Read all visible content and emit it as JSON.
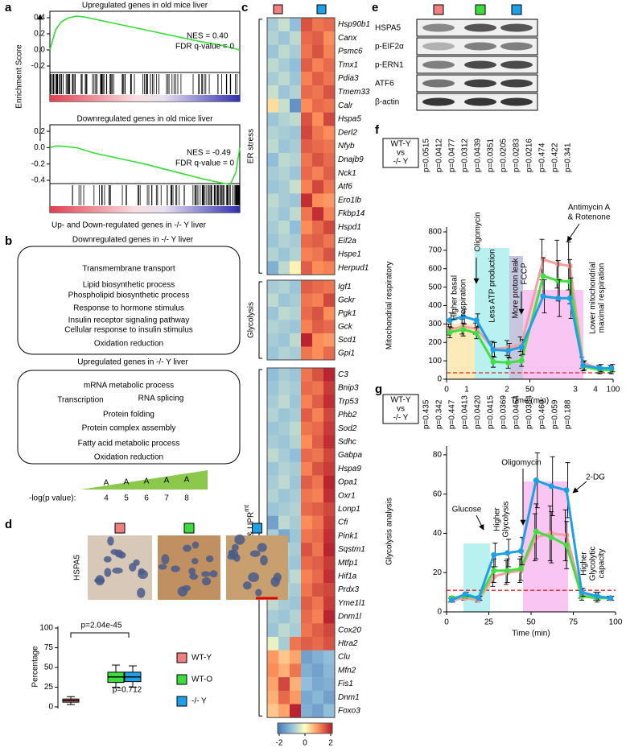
{
  "panel_labels": [
    "a",
    "b",
    "c",
    "d",
    "e",
    "f",
    "g"
  ],
  "a": {
    "y_label": "Enrichment Score",
    "x_label": "Up- and Down-regulated genes in -/- Y liver",
    "plots": [
      {
        "type": "line",
        "title": "Upregulated genes in old mice liver",
        "nes": "NES = 0.40",
        "fdr": "FDR q-value = 0",
        "color": "#33dd33",
        "x": [
          0,
          3,
          6,
          10,
          14,
          18,
          24,
          30,
          40,
          50,
          60,
          70,
          80,
          90,
          95,
          100
        ],
        "values": [
          0,
          0.25,
          0.35,
          0.4,
          0.42,
          0.41,
          0.38,
          0.35,
          0.3,
          0.25,
          0.2,
          0.15,
          0.1,
          0.06,
          0.03,
          0
        ],
        "xlim": [
          0,
          100
        ],
        "ylim": [
          -0.28,
          0.48
        ],
        "yticks": [
          0.4,
          0.2,
          {
            "value": 0,
            "label": "0.0"
          },
          -0.2
        ]
      },
      {
        "type": "line",
        "title": "Downregulated genes in old mice liver",
        "nes": "NES = -0.49",
        "fdr": "FDR q-value = 0",
        "color": "#33dd33",
        "x": [
          0,
          3,
          6,
          10,
          14,
          18,
          24,
          30,
          40,
          50,
          60,
          70,
          80,
          90,
          95,
          98,
          100
        ],
        "values": [
          0,
          0.02,
          0.02,
          0.01,
          0,
          -0.03,
          -0.07,
          -0.1,
          -0.15,
          -0.2,
          -0.26,
          -0.32,
          -0.38,
          -0.43,
          -0.45,
          -0.3,
          0
        ],
        "xlim": [
          0,
          100
        ],
        "ylim": [
          -0.44,
          0.28
        ],
        "yticks": [
          0.2,
          {
            "value": 0,
            "label": "0.0"
          },
          -0.2,
          -0.4
        ]
      }
    ]
  },
  "b": {
    "clouds": [
      {
        "title": "Downregulated genes in -/- Y liver",
        "terms": [
          {
            "text": "Transmembrane transport",
            "color": "#7030a0"
          },
          {
            "text": "Lipid biosynthetic process",
            "color": "#e01010"
          },
          {
            "text": "Phospholipid biosynthetic process",
            "color": "#e01010"
          },
          {
            "text": "Response to hormone stimulus",
            "color": "#1fa5d8"
          },
          {
            "text": "Insulin receptor signaling pathway",
            "color": "#1fa5d8"
          },
          {
            "text": "Cellular response to insulin stimulus",
            "color": "#1fa5d8"
          },
          {
            "text": "Oxidation reduction",
            "color": "#20a040"
          }
        ]
      },
      {
        "title": "Upregulated genes in -/- Y liver",
        "terms": [
          {
            "text": "mRNA metabolic process",
            "color": "#000000"
          },
          {
            "text": "Transcription",
            "color": "#000000"
          },
          {
            "text": "RNA splicing",
            "color": "#000000"
          },
          {
            "text": "Protein folding",
            "color": "#c8960c"
          },
          {
            "text": "Protein complex assembly",
            "color": "#c8960c"
          },
          {
            "text": "Fatty acid metabolic process",
            "color": "#e01010"
          },
          {
            "text": "Oxidation reduction",
            "color": "#20a040"
          }
        ]
      }
    ],
    "scale_label": "-log(p value):",
    "scale_letter": "A",
    "scale_values": [
      4,
      5,
      6,
      7,
      8
    ],
    "scale_color": "#8cc84b"
  },
  "c": {
    "type": "heatmap",
    "column_colors": [
      "#f08080",
      "#1ea0e6"
    ],
    "clim": [
      -2,
      2
    ],
    "colorbar_ticks": [
      -2,
      0,
      2
    ],
    "groups": [
      {
        "name": "ER stress",
        "genes": [
          "Hsp90b1",
          "Canx",
          "Psmc6",
          "Tmx1",
          "Pdia3",
          "Tmem33",
          "Calr",
          "Hspa5",
          "Derl2",
          "Nfyb",
          "Dnajb9",
          "Nck1",
          "Atf6",
          "Ero1lb",
          "Fkbp14",
          "Hspd1",
          "Eif2a",
          "Hspe1",
          "Herpud1"
        ],
        "values": [
          [
            -0.8,
            -0.5,
            -1.0,
            1.5,
            1.2,
            1.3
          ],
          [
            -0.7,
            -0.9,
            -0.6,
            1.3,
            1.4,
            1.0
          ],
          [
            -0.9,
            -0.6,
            -0.8,
            1.2,
            1.5,
            1.1
          ],
          [
            -0.6,
            -0.8,
            -1.0,
            1.4,
            1.1,
            1.3
          ],
          [
            -0.8,
            -0.6,
            -0.9,
            1.1,
            1.4,
            1.2
          ],
          [
            -0.5,
            -0.9,
            -0.7,
            1.3,
            1.2,
            1.5
          ],
          [
            0.3,
            -0.5,
            -1.6,
            1.0,
            1.3,
            1.2
          ],
          [
            -0.9,
            -0.7,
            -0.6,
            1.5,
            1.0,
            1.6
          ],
          [
            -0.7,
            -0.8,
            -0.9,
            1.6,
            1.2,
            1.0
          ],
          [
            -0.6,
            -0.9,
            -0.8,
            1.4,
            1.3,
            1.2
          ],
          [
            -1.0,
            -0.6,
            -0.7,
            1.2,
            1.5,
            1.3
          ],
          [
            -0.8,
            -0.7,
            -0.9,
            1.3,
            1.1,
            1.4
          ],
          [
            -0.9,
            -0.8,
            -0.5,
            1.1,
            1.6,
            1.2
          ],
          [
            -0.6,
            -0.8,
            -0.9,
            1.8,
            1.0,
            0.9
          ],
          [
            -0.7,
            -0.9,
            -0.6,
            1.2,
            1.8,
            1.1
          ],
          [
            -0.8,
            -0.6,
            -1.0,
            1.0,
            1.3,
            1.6
          ],
          [
            -0.9,
            -0.7,
            -0.8,
            1.3,
            1.4,
            1.2
          ],
          [
            -0.7,
            -0.9,
            -0.7,
            1.1,
            1.2,
            1.5
          ],
          [
            -1.2,
            -0.6,
            0.1,
            1.4,
            1.0,
            1.1
          ]
        ]
      },
      {
        "name": "Glycolysis",
        "genes": [
          "Igf1",
          "Gckr",
          "Pgk1",
          "Gck",
          "Scd1",
          "Gpi1"
        ],
        "values": [
          [
            -0.8,
            -0.7,
            -0.9,
            1.4,
            1.3,
            1.2
          ],
          [
            -0.6,
            -0.9,
            -0.8,
            1.2,
            1.1,
            1.6
          ],
          [
            -0.9,
            -0.6,
            -0.7,
            1.3,
            1.5,
            1.0
          ],
          [
            -0.7,
            -0.8,
            -0.9,
            1.1,
            1.4,
            1.3
          ],
          [
            -0.8,
            -0.9,
            -0.6,
            1.9,
            1.0,
            0.9
          ],
          [
            -0.9,
            -0.7,
            -0.8,
            1.2,
            1.0,
            1.3
          ]
        ]
      },
      {
        "name": "Mito activity & UPR",
        "name_sup": "mt",
        "genes": [
          "C3",
          "Bnip3",
          "Trp53",
          "Phb2",
          "Sod2",
          "Sdhc",
          "Gabpa",
          "Hspa9",
          "Opa1",
          "Oxr1",
          "Lonp1",
          "Cfi",
          "Pink1",
          "Sqstm1",
          "Mtfp1",
          "Hif1a",
          "Prdx3",
          "Yme1l1",
          "Dnm1l",
          "Cox20",
          "Htra2",
          "Clu",
          "Mfn2",
          "Fis1",
          "Dnm1",
          "Foxo3"
        ],
        "values": [
          [
            -1.0,
            -0.8,
            -0.9,
            1.2,
            1.5,
            1.9
          ],
          [
            -0.9,
            -0.7,
            -0.8,
            1.3,
            1.2,
            1.7
          ],
          [
            -0.8,
            -0.6,
            -0.9,
            1.1,
            1.4,
            1.8
          ],
          [
            -0.7,
            -0.9,
            -0.8,
            1.4,
            1.1,
            1.6
          ],
          [
            -0.9,
            -0.8,
            -0.6,
            1.2,
            1.3,
            1.7
          ],
          [
            -0.8,
            -0.9,
            -0.7,
            1.0,
            1.4,
            1.8
          ],
          [
            -0.6,
            -0.8,
            -1.0,
            1.3,
            1.2,
            1.6
          ],
          [
            -0.9,
            -0.7,
            -0.8,
            1.1,
            1.5,
            1.7
          ],
          [
            -0.8,
            -0.6,
            -0.9,
            1.4,
            1.2,
            1.9
          ],
          [
            -0.7,
            -0.9,
            -0.8,
            1.2,
            1.1,
            1.8
          ],
          [
            -0.9,
            -0.8,
            -0.7,
            1.3,
            1.4,
            1.6
          ],
          [
            -1.4,
            -0.6,
            -0.8,
            1.0,
            1.2,
            1.7
          ],
          [
            -0.8,
            -1.3,
            -0.9,
            1.2,
            1.3,
            1.8
          ],
          [
            -0.9,
            -0.7,
            -0.8,
            1.5,
            1.2,
            1.9
          ],
          [
            -0.7,
            -0.8,
            -0.9,
            1.3,
            1.4,
            1.7
          ],
          [
            -0.8,
            -0.9,
            -0.6,
            1.1,
            1.3,
            1.8
          ],
          [
            -0.9,
            -0.7,
            -0.8,
            1.2,
            1.5,
            1.6
          ],
          [
            -0.6,
            -0.8,
            -0.9,
            1.4,
            1.2,
            1.7
          ],
          [
            -0.8,
            -0.9,
            -0.7,
            1.3,
            1.1,
            1.9
          ],
          [
            -0.9,
            -0.6,
            -0.8,
            1.2,
            1.4,
            1.6
          ],
          [
            -0.2,
            -0.8,
            1.2,
            1.4,
            1.3,
            1.5
          ],
          [
            0.9,
            0.5,
            0.8,
            -1.4,
            -1.2,
            -1.0
          ],
          [
            1.0,
            0.7,
            1.2,
            -1.2,
            -1.4,
            -1.1
          ],
          [
            0.8,
            1.6,
            0.7,
            -1.0,
            -1.3,
            -1.2
          ],
          [
            0.7,
            1.3,
            0.9,
            -1.3,
            -1.1,
            -1.4
          ],
          [
            0.5,
            0.8,
            1.9,
            -1.2,
            -1.4,
            -1.0
          ]
        ]
      }
    ]
  },
  "d": {
    "stain_label": "HSPA5",
    "lane_colors": [
      "#f08080",
      "#3cdc3c",
      "#1ea0e6"
    ],
    "box": {
      "type": "box",
      "y_label": "Percentage",
      "ylim": [
        0,
        100
      ],
      "yticks": [
        0,
        25,
        50,
        75,
        100
      ],
      "p_top": "p=2.04e-45",
      "p_bottom": "p=0.712",
      "groups": [
        {
          "name": "WT-Y",
          "color": "#f08080",
          "min": 3,
          "q1": 6,
          "median": 8,
          "q3": 10,
          "max": 13
        },
        {
          "name": "WT-O",
          "color": "#3cdc3c",
          "min": 25,
          "q1": 31,
          "median": 38,
          "q3": 44,
          "max": 53
        },
        {
          "name": "-/- Y",
          "color": "#1ea0e6",
          "min": 25,
          "q1": 32,
          "median": 38,
          "q3": 44,
          "max": 52
        }
      ]
    }
  },
  "e": {
    "blots": [
      "HSPA5",
      "p-EIF2α",
      "p-ERN1",
      "ATF6",
      "β-actin"
    ],
    "lane_colors": [
      "#f08080",
      "#3cdc3c",
      "#1ea0e6"
    ]
  },
  "f": {
    "type": "line",
    "comparison": [
      "WT-Y",
      "vs",
      "-/- Y"
    ],
    "pvalues": [
      "p=0.0515",
      "p=0.0412",
      "p=0.0477",
      "p=0.0312",
      "p=0.0439",
      "p=0.0351",
      "p=0.0205",
      "p=0.0283",
      "p=0.0216",
      "p=0.474",
      "p=0.422",
      "p=0.341"
    ],
    "pvalue_colors": [
      "#000000",
      "#e02020",
      "#e02020",
      "#e02020",
      "#e02020",
      "#e02020",
      "#e02020",
      "#e02020",
      "#e02020",
      "#000000",
      "#000000",
      "#000000"
    ],
    "y_label": "Mitochondrial respiratory",
    "x_label": "Time (min)",
    "xlim": [
      0,
      100
    ],
    "xticks": [
      0,
      50,
      100
    ],
    "ylim": [
      0,
      800
    ],
    "yticks": [
      0,
      100,
      200,
      300,
      400,
      500,
      600,
      700,
      800
    ],
    "phase_labels": [
      "1",
      "2",
      "3",
      "4"
    ],
    "threshold": 35,
    "threshold_color": "#e02020",
    "x": [
      2,
      10,
      18,
      28,
      37,
      45,
      58,
      67,
      74,
      82,
      92,
      99
    ],
    "series": [
      {
        "color": "#f4a0a0",
        "values": [
          270,
          285,
          275,
          165,
          170,
          190,
          650,
          625,
          615,
          90,
          55,
          55
        ],
        "errors": [
          30,
          40,
          30,
          40,
          40,
          40,
          110,
          130,
          130,
          30,
          20,
          20
        ]
      },
      {
        "color": "#44dd44",
        "values": [
          255,
          270,
          250,
          95,
          90,
          100,
          560,
          535,
          530,
          70,
          50,
          50
        ],
        "errors": [
          30,
          35,
          30,
          30,
          30,
          30,
          100,
          110,
          120,
          25,
          20,
          20
        ]
      },
      {
        "color": "#1ea0e6",
        "values": [
          320,
          340,
          320,
          160,
          155,
          175,
          450,
          440,
          440,
          75,
          60,
          60
        ],
        "errors": [
          40,
          40,
          35,
          40,
          40,
          40,
          90,
          100,
          110,
          25,
          20,
          20
        ]
      }
    ],
    "annotations": [
      {
        "lines": [
          "Higher basal",
          "respiration"
        ],
        "color": "#e02020"
      },
      {
        "lines": [
          "Oligomycin"
        ],
        "color": "#000000"
      },
      {
        "lines": [
          "Less ATP production"
        ],
        "color": "#e02020"
      },
      {
        "lines": [
          "More proton leak"
        ],
        "color": "#e02020"
      },
      {
        "lines": [
          "FCCP"
        ],
        "color": "#000000"
      },
      {
        "lines": [
          "Antimycin A",
          "& Rotenone"
        ],
        "color": "#000000"
      },
      {
        "lines": [
          "Lower mitochondrial",
          "maximal respiration"
        ],
        "color": "#e02020"
      }
    ]
  },
  "g": {
    "type": "line",
    "comparison": [
      "WT-Y",
      "vs",
      "-/- Y"
    ],
    "pvalues": [
      "p=0.435",
      "p=0.342",
      "p=0.447",
      "p=0.0413",
      "p=0.0420",
      "p=0.0415",
      "p=0.0369",
      "p=0.0464",
      "p=0.0384",
      "p=0.460",
      "p=0.059",
      "p=0.188"
    ],
    "pvalue_colors": [
      "#000000",
      "#000000",
      "#000000",
      "#e02020",
      "#e02020",
      "#e02020",
      "#e02020",
      "#e02020",
      "#e02020",
      "#000000",
      "#000000",
      "#000000"
    ],
    "y_label": "Glycolysis analysis",
    "x_label": "Time (min)",
    "xlim": [
      0,
      100
    ],
    "xticks": [
      0,
      25,
      50,
      75,
      100
    ],
    "ylim": [
      0,
      82
    ],
    "yticks": [
      0,
      20,
      40,
      60,
      80
    ],
    "threshold": 11,
    "threshold_color": "#e02020",
    "x": [
      3,
      11,
      19,
      28,
      36,
      44,
      53,
      62,
      71,
      80,
      89,
      97
    ],
    "series": [
      {
        "color": "#f4a0a0",
        "values": [
          6,
          7,
          6,
          18,
          20,
          21,
          38,
          40,
          39,
          9,
          8,
          7
        ],
        "errors": [
          1,
          1,
          1,
          5,
          6,
          6,
          12,
          14,
          13,
          2,
          2,
          1
        ]
      },
      {
        "color": "#44dd44",
        "values": [
          7,
          8,
          7,
          21,
          21,
          22,
          41,
          38,
          34,
          8,
          7,
          7
        ],
        "errors": [
          1,
          1,
          1,
          6,
          6,
          6,
          14,
          13,
          12,
          2,
          2,
          1
        ]
      },
      {
        "color": "#1ea0e6",
        "values": [
          6,
          9,
          7,
          29,
          30,
          31,
          67,
          64,
          62,
          10,
          8,
          7
        ],
        "errors": [
          1,
          1,
          1,
          6,
          7,
          7,
          14,
          15,
          14,
          2,
          2,
          1
        ]
      }
    ],
    "annotations": [
      {
        "lines": [
          "Glucose"
        ],
        "color": "#000000"
      },
      {
        "lines": [
          "Higher",
          "Glycolysis"
        ],
        "color": "#e02020"
      },
      {
        "lines": [
          "Oligomycin"
        ],
        "color": "#000000"
      },
      {
        "lines": [
          "2-DG"
        ],
        "color": "#000000"
      },
      {
        "lines": [
          "Higher",
          "Glycolytic",
          "capacity"
        ],
        "color": "#e02020"
      }
    ]
  }
}
